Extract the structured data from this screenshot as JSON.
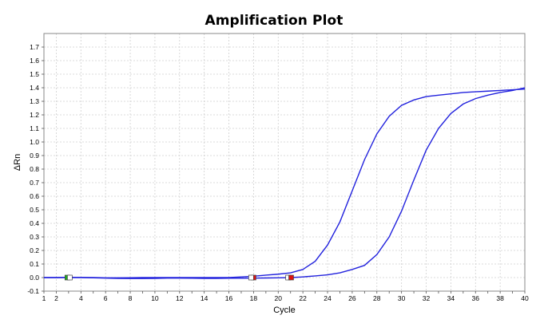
{
  "chart_data": {
    "type": "line",
    "title": "Amplification Plot",
    "xlabel": "Cycle",
    "ylabel": "ΔRn",
    "xlim": [
      1,
      40
    ],
    "ylim": [
      -0.1,
      1.8
    ],
    "x_ticks": [
      2,
      4,
      6,
      8,
      10,
      12,
      14,
      16,
      18,
      20,
      22,
      24,
      26,
      28,
      30,
      32,
      34,
      36,
      38,
      40
    ],
    "y_ticks": [
      -0.1,
      0.0,
      0.1,
      0.2,
      0.3,
      0.4,
      0.5,
      0.6,
      0.7,
      0.8,
      0.9,
      1.0,
      1.1,
      1.2,
      1.3,
      1.4,
      1.5,
      1.6,
      1.7
    ],
    "y_tick_labels": [
      "-0.1",
      "0.0",
      "0.1",
      "0.2",
      "0.3",
      "0.4",
      "0.5",
      "0.6",
      "0.7",
      "0.8",
      "0.9",
      "1.0",
      "1.1",
      "1.2",
      "1.3",
      "1.4",
      "1.5",
      "1.6",
      "1.7"
    ],
    "grid": true,
    "line_color": "#2222dd",
    "series": [
      {
        "x": [
          1,
          2,
          3,
          4,
          5,
          6,
          7,
          8,
          9,
          10,
          11,
          12,
          13,
          14,
          15,
          16,
          17,
          18,
          19,
          20,
          21,
          22,
          23,
          24,
          25,
          26,
          27,
          28,
          29,
          30,
          31,
          32,
          33,
          34,
          35,
          36,
          37,
          38,
          39,
          40
        ],
        "values": [
          0.0,
          0.0,
          0.002,
          0.001,
          0.0,
          -0.002,
          -0.002,
          -0.001,
          0.0,
          0.0,
          0.0,
          0.0,
          0.0,
          0.0,
          0.0,
          0.0,
          0.005,
          0.01,
          0.018,
          0.025,
          0.035,
          0.06,
          0.12,
          0.24,
          0.41,
          0.64,
          0.87,
          1.06,
          1.19,
          1.27,
          1.31,
          1.335,
          1.345,
          1.355,
          1.365,
          1.37,
          1.375,
          1.38,
          1.385,
          1.39
        ]
      },
      {
        "x": [
          1,
          2,
          3,
          4,
          5,
          6,
          7,
          8,
          9,
          10,
          11,
          12,
          13,
          14,
          15,
          16,
          17,
          18,
          19,
          20,
          21,
          22,
          23,
          24,
          25,
          26,
          27,
          28,
          29,
          30,
          31,
          32,
          33,
          34,
          35,
          36,
          37,
          38,
          39,
          40
        ],
        "values": [
          0.0,
          0.0,
          0.0,
          0.0,
          -0.002,
          -0.004,
          -0.006,
          -0.007,
          -0.007,
          -0.006,
          -0.004,
          -0.004,
          -0.005,
          -0.006,
          -0.006,
          -0.005,
          -0.005,
          -0.004,
          -0.003,
          -0.002,
          0.0,
          0.005,
          0.012,
          0.02,
          0.035,
          0.06,
          0.09,
          0.17,
          0.3,
          0.49,
          0.72,
          0.94,
          1.1,
          1.21,
          1.28,
          1.32,
          1.345,
          1.365,
          1.38,
          1.4
        ]
      }
    ],
    "markers": [
      {
        "x": 2.9,
        "y": 0.0,
        "color": "#22aa22"
      },
      {
        "x": 3.1,
        "y": 0.0,
        "color": "#ffffff"
      },
      {
        "x": 18.0,
        "y": 0.0,
        "color": "#dd1111"
      },
      {
        "x": 17.8,
        "y": 0.0,
        "color": "#ffffff"
      },
      {
        "x": 20.8,
        "y": 0.0,
        "color": "#ffffff"
      },
      {
        "x": 21.05,
        "y": 0.0,
        "color": "#dd1111"
      }
    ]
  }
}
